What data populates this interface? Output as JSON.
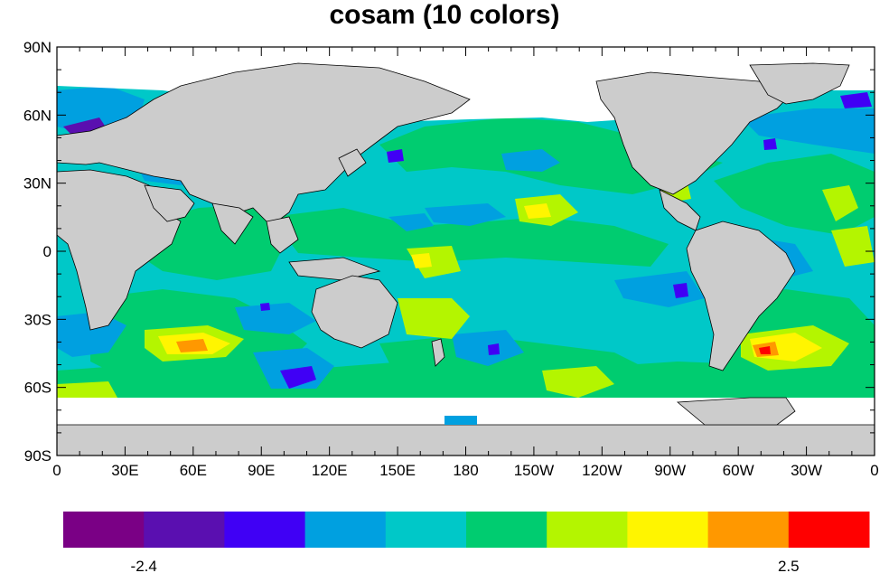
{
  "title": "cosam (10 colors)",
  "map": {
    "projection": "cylindrical-equidistant",
    "lon_range": [
      0,
      360
    ],
    "lat_range": [
      -90,
      90
    ],
    "land_color": "#cccccc",
    "missing_color": "#ffffff",
    "lat_labels": [
      {
        "lat": 90,
        "text": "90N"
      },
      {
        "lat": 60,
        "text": "60N"
      },
      {
        "lat": 30,
        "text": "30N"
      },
      {
        "lat": 0,
        "text": "0"
      },
      {
        "lat": -30,
        "text": "30S"
      },
      {
        "lat": -60,
        "text": "60S"
      },
      {
        "lat": -90,
        "text": "90S"
      }
    ],
    "lon_labels": [
      {
        "lon": 0,
        "text": "0"
      },
      {
        "lon": 30,
        "text": "30E"
      },
      {
        "lon": 60,
        "text": "60E"
      },
      {
        "lon": 90,
        "text": "90E"
      },
      {
        "lon": 120,
        "text": "120E"
      },
      {
        "lon": 150,
        "text": "150E"
      },
      {
        "lon": 180,
        "text": "180"
      },
      {
        "lon": 210,
        "text": "150W"
      },
      {
        "lon": 240,
        "text": "120W"
      },
      {
        "lon": 270,
        "text": "90W"
      },
      {
        "lon": 300,
        "text": "60W"
      },
      {
        "lon": 330,
        "text": "30W"
      },
      {
        "lon": 360,
        "text": "0"
      }
    ]
  },
  "colorbar": {
    "colors": [
      "#7a0085",
      "#5a0fb0",
      "#4000f5",
      "#00a0e0",
      "#00c8c8",
      "#00cc70",
      "#b4f500",
      "#fff500",
      "#ff9800",
      "#ff0000"
    ],
    "labels": [
      {
        "index": 1,
        "text": "-2.4"
      },
      {
        "index": 9,
        "text": "2.5"
      }
    ]
  }
}
